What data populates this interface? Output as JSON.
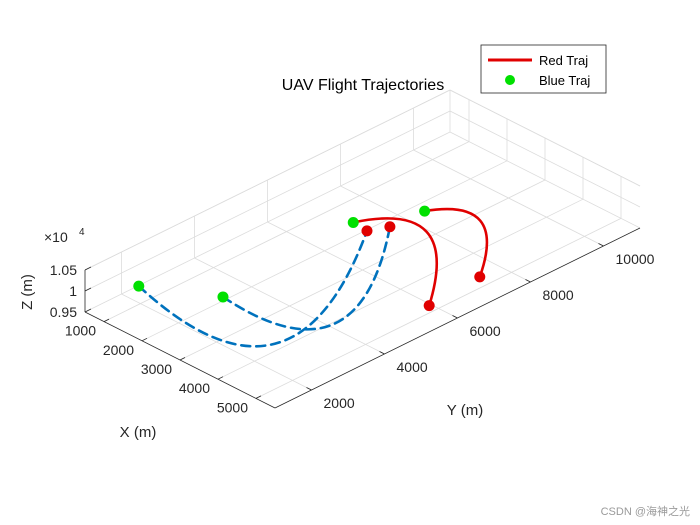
{
  "chart_data": {
    "type": "line",
    "title": "UAV Flight Trajectories",
    "xlabel": "X (m)",
    "ylabel": "Y (m)",
    "zlabel": "Z (m)",
    "z_exponent_label": "×10",
    "z_exponent_power": "4",
    "xlim": [
      500,
      5500
    ],
    "ylim": [
      1000,
      11000
    ],
    "zlim": [
      9500,
      10500
    ],
    "x_ticks": [
      "1000",
      "2000",
      "3000",
      "4000",
      "5000"
    ],
    "x_tick_values": [
      1000,
      2000,
      3000,
      4000,
      5000
    ],
    "y_ticks": [
      "2000",
      "4000",
      "6000",
      "8000",
      "10000"
    ],
    "y_tick_values": [
      2000,
      4000,
      6000,
      8000,
      10000
    ],
    "z_ticks": [
      "0.95",
      "1",
      "1.05"
    ],
    "z_tick_values": [
      9500,
      10000,
      10500
    ],
    "grid": true,
    "legend_position": "top-right",
    "colors": {
      "red": "#e00000",
      "blue": "#0072bd",
      "marker": "#00e000"
    },
    "series": [
      {
        "name": "Red Traj",
        "style": "solid",
        "color": "#e00000",
        "trajectories": [
          {
            "start": [
              2180,
              6600,
              10000
            ],
            "end": [
              5360,
              5370,
              10000
            ]
          },
          {
            "start": [
              2810,
              7900,
              10000
            ],
            "end": [
              5260,
              6860,
              10000
            ]
          }
        ]
      },
      {
        "name": "Blue Traj",
        "style": "dashed",
        "color": "#0072bd",
        "trajectories": [
          {
            "start": [
              1070,
              1880,
              10000
            ],
            "end": [
              2580,
              6560,
              10000
            ]
          },
          {
            "start": [
              2450,
              2750,
              10000
            ],
            "end": [
              2770,
              6990,
              10000
            ]
          }
        ]
      }
    ]
  },
  "watermark": "CSDN @海神之光"
}
